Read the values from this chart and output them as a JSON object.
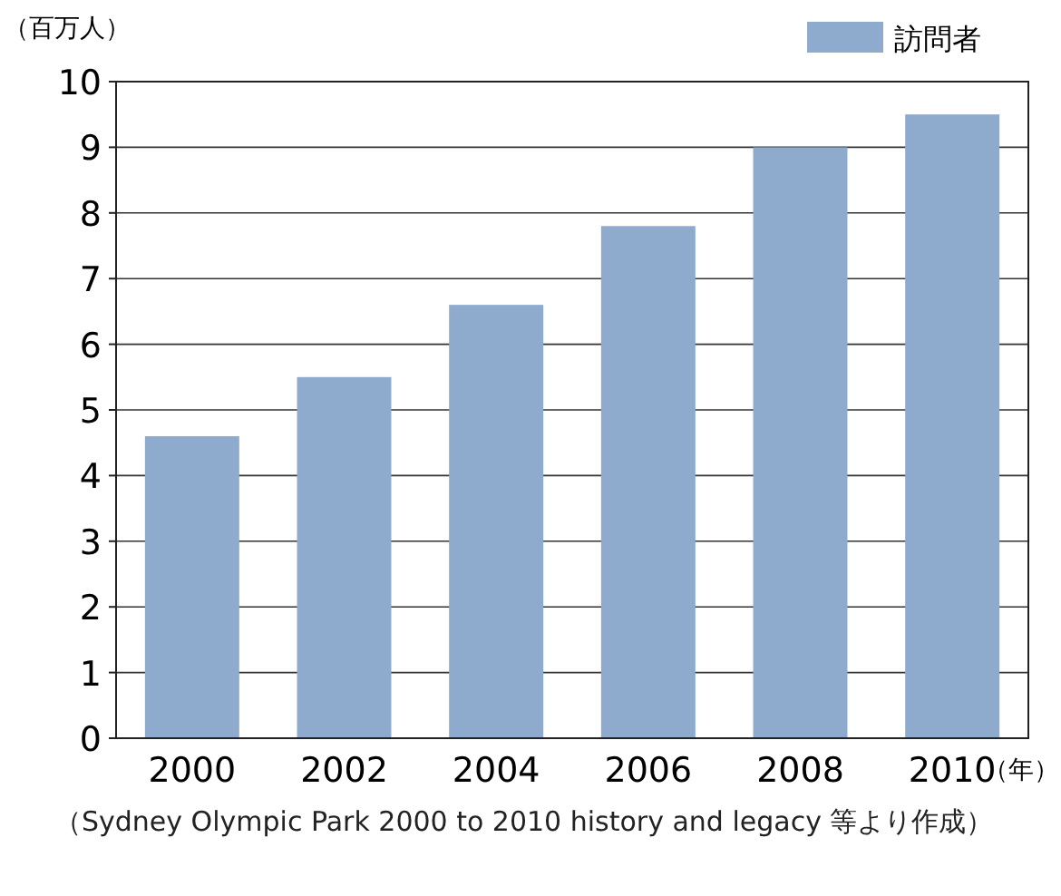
{
  "chart_data": {
    "type": "bar",
    "categories": [
      "2000",
      "2002",
      "2004",
      "2006",
      "2008",
      "2010"
    ],
    "series": [
      {
        "name": "訪問者",
        "color": "#8eaacd",
        "values": [
          4.6,
          5.5,
          6.6,
          7.8,
          9.0,
          9.5
        ]
      }
    ],
    "ylabel": "（百万人）",
    "xlabel": "（年）",
    "ylim": [
      0,
      10
    ],
    "yticks": [
      0,
      1,
      2,
      3,
      4,
      5,
      6,
      7,
      8,
      9,
      10
    ],
    "grid": "y",
    "legend": "top right",
    "annotations": [
      "（Sydney Olympic Park 2000 to 2010 history and legacy 等より作成）"
    ]
  }
}
